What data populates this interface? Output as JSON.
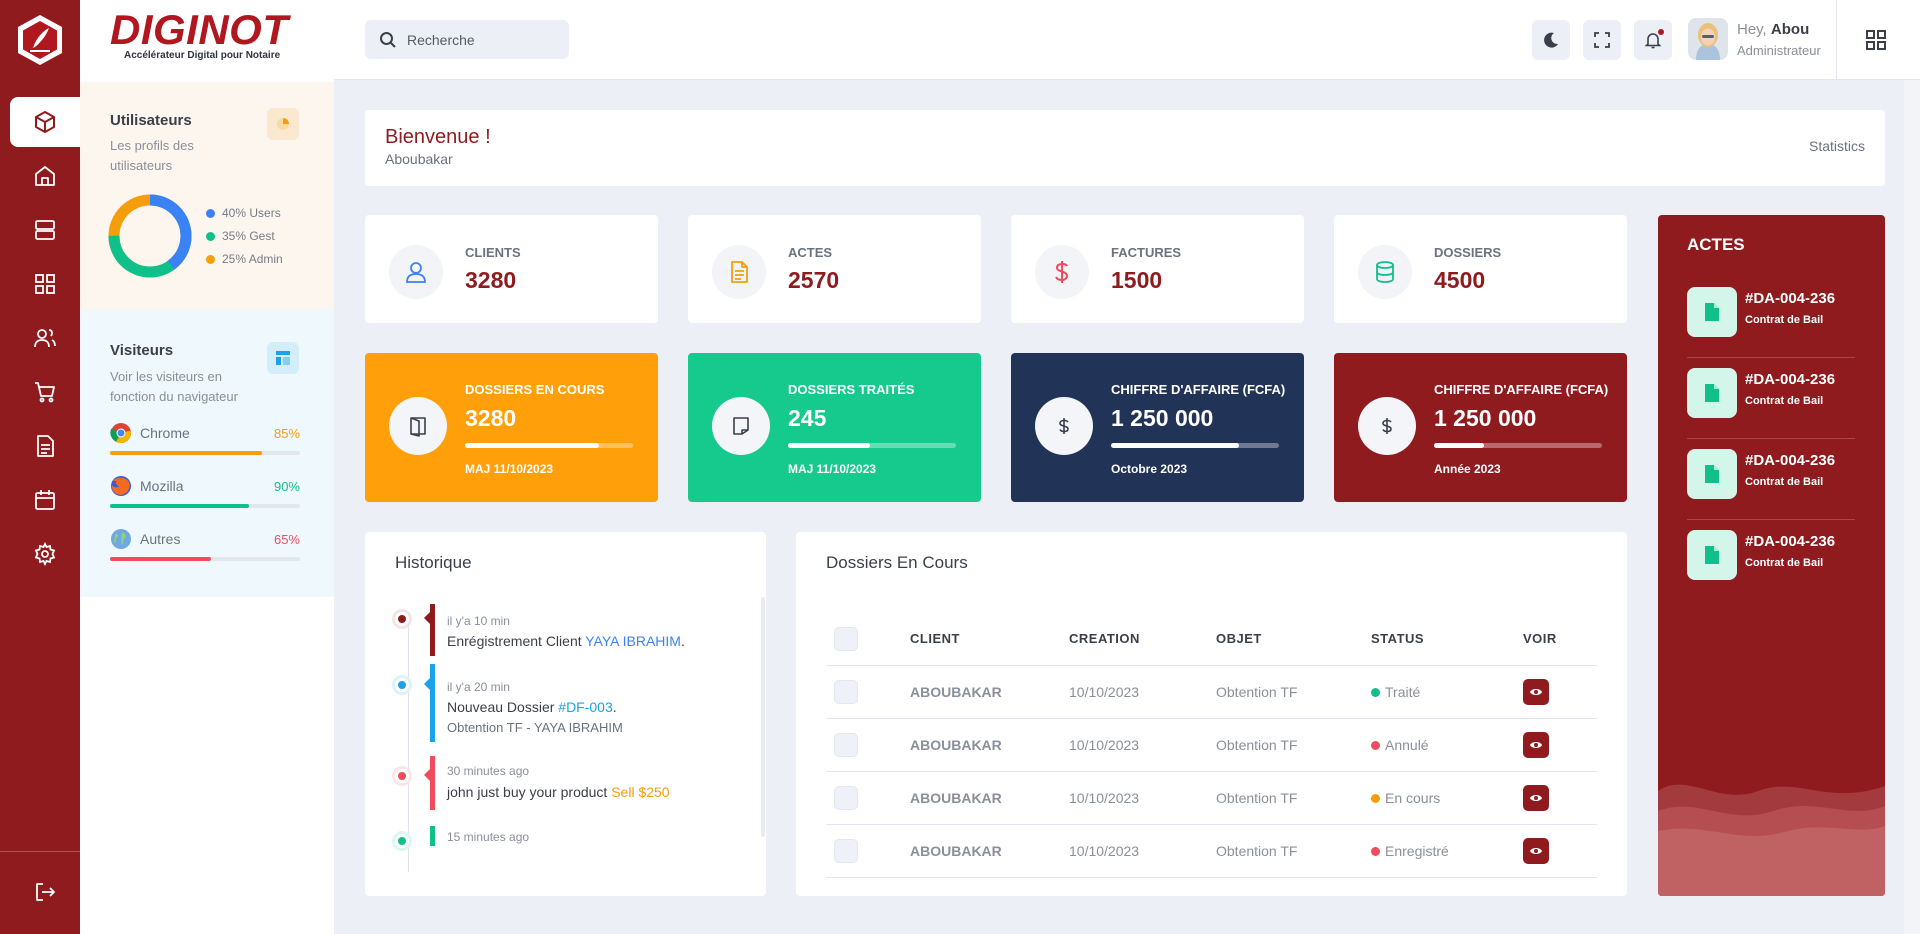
{
  "brand": {
    "name": "DIGINOT",
    "tagline": "Accélérateur Digital pour Notaire"
  },
  "rail": {
    "items": [
      {
        "name": "cube",
        "active": true
      },
      {
        "name": "home"
      },
      {
        "name": "server"
      },
      {
        "name": "apps"
      },
      {
        "name": "users"
      },
      {
        "name": "cart"
      },
      {
        "name": "document"
      },
      {
        "name": "calendar"
      },
      {
        "name": "gear"
      }
    ],
    "logout": "logout"
  },
  "users_card": {
    "title": "Utilisateurs",
    "subtitle": "Les profils des utilisateurs",
    "legend": [
      {
        "label": "40% Users",
        "value": 40,
        "color": "#3b82f6"
      },
      {
        "label": "35% Gest",
        "value": 35,
        "color": "#10c08a"
      },
      {
        "label": "25% Admin",
        "value": 25,
        "color": "#f59e0b"
      }
    ]
  },
  "visitors_card": {
    "title": "Visiteurs",
    "subtitle": "Voir les visiteurs en fonction du navigateur",
    "browsers": [
      {
        "name": "Chrome",
        "pct": "85%",
        "value": 0.85,
        "color": "#f59e0b"
      },
      {
        "name": "Mozilla",
        "pct": "90%",
        "value": 0.9,
        "color": "#10c08a"
      },
      {
        "name": "Autres",
        "pct": "65%",
        "value": 0.65,
        "color": "#ef4d5e"
      }
    ]
  },
  "topbar": {
    "search_placeholder": "Recherche",
    "greeting": "Hey,",
    "user_name": "Abou",
    "role": "Administrateur"
  },
  "welcome": {
    "title": "Bienvenue !",
    "name": "Aboubakar",
    "link": "Statistics"
  },
  "stats": [
    {
      "label": "CLIENTS",
      "value": "3280",
      "icon": "user-icon",
      "color": "#3b82f6"
    },
    {
      "label": "ACTES",
      "value": "2570",
      "icon": "file-icon",
      "color": "#f59e0b"
    },
    {
      "label": "FACTURES",
      "value": "1500",
      "icon": "dollar-icon",
      "color": "#ef4d5e"
    },
    {
      "label": "DOSSIERS",
      "value": "4500",
      "icon": "database-icon",
      "color": "#10c08a"
    }
  ],
  "kpis": [
    {
      "label": "DOSSIERS EN COURS",
      "value": "3280",
      "sub": "MAJ 11/10/2023",
      "progress": 0.8,
      "bg": "#ff9f0a"
    },
    {
      "label": "DOSSIERS TRAITÉS",
      "value": "245",
      "sub": "MAJ 11/10/2023",
      "progress": 0.49,
      "bg": "#16c98d"
    },
    {
      "label": "CHIFFRE D'AFFAIRE (FCFA)",
      "value": "1 250 000",
      "sub": "Octobre 2023",
      "progress": 0.76,
      "bg": "#223358"
    },
    {
      "label": "CHIFFRE D'AFFAIRE (FCFA)",
      "value": "1 250 000",
      "sub": "Année 2023",
      "progress": 0.3,
      "bg": "#8f1b1f"
    }
  ],
  "historique": {
    "title": "Historique",
    "items": [
      {
        "time": "il y'a 10 min",
        "text": "Enrégistrement Client ",
        "highlight": "YAYA IBRAHIM",
        "after": ".",
        "extra": "",
        "color": "#8f1b1f",
        "hcolor": "#3b82f6"
      },
      {
        "time": "il y'a 20 min",
        "text": "Nouveau Dossier ",
        "highlight": "#DF-003",
        "after": ".",
        "extra": "Obtention TF - YAYA IBRAHIM",
        "color": "#1aa3e8",
        "hcolor": "#1aa3e8"
      },
      {
        "time": "30 minutes ago",
        "text": "john just buy your product ",
        "highlight": "Sell $250",
        "after": "",
        "extra": "",
        "color": "#ef4d5e",
        "hcolor": "#f59e0b"
      },
      {
        "time": "15 minutes ago",
        "text": "",
        "highlight": "",
        "after": "",
        "extra": "",
        "color": "#10c08a",
        "hcolor": "#10c08a"
      }
    ]
  },
  "dossiers": {
    "title": "Dossiers En Cours",
    "columns": [
      "CLIENT",
      "CREATION",
      "OBJET",
      "STATUS",
      "VOIR"
    ],
    "rows": [
      {
        "client": "ABOUBAKAR",
        "creation": "10/10/2023",
        "objet": "Obtention TF",
        "status": "Traité",
        "status_color": "#10c08a"
      },
      {
        "client": "ABOUBAKAR",
        "creation": "10/10/2023",
        "objet": "Obtention TF",
        "status": "Annulé",
        "status_color": "#ef4d5e"
      },
      {
        "client": "ABOUBAKAR",
        "creation": "10/10/2023",
        "objet": "Obtention TF",
        "status": "En cours",
        "status_color": "#f59e0b"
      },
      {
        "client": "ABOUBAKAR",
        "creation": "10/10/2023",
        "objet": "Obtention TF",
        "status": "Enregistré",
        "status_color": "#ef4d5e"
      }
    ]
  },
  "actes": {
    "title": "ACTES",
    "items": [
      {
        "code": "#DA-004-236",
        "desc": "Contrat de Bail"
      },
      {
        "code": "#DA-004-236",
        "desc": "Contrat de Bail"
      },
      {
        "code": "#DA-004-236",
        "desc": "Contrat de Bail"
      },
      {
        "code": "#DA-004-236",
        "desc": "Contrat de Bail"
      }
    ]
  }
}
